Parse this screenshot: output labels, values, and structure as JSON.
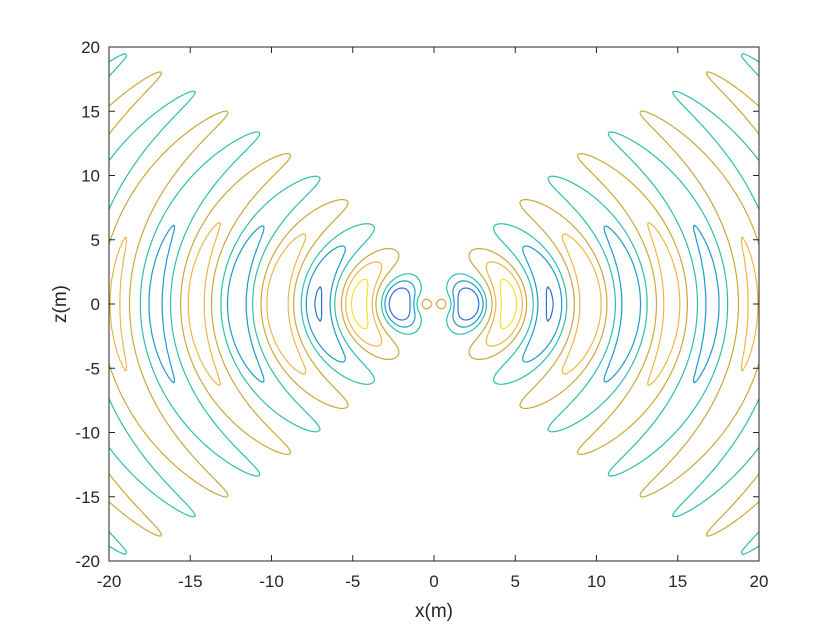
{
  "chart_data": {
    "type": "contour",
    "title": "",
    "xlabel": "x(m)",
    "ylabel": "z(m)",
    "xlim": [
      -20,
      20
    ],
    "ylim": [
      -20,
      20
    ],
    "xticks": [
      -20,
      -15,
      -10,
      -5,
      0,
      5,
      10,
      15,
      20
    ],
    "yticks": [
      -20,
      -15,
      -10,
      -5,
      0,
      5,
      10,
      15,
      20
    ],
    "xtick_labels": [
      "-20",
      "-15",
      "-10",
      "-5",
      "0",
      "5",
      "10",
      "15",
      "20"
    ],
    "ytick_labels": [
      "-20",
      "-15",
      "-10",
      "-5",
      "0",
      "5",
      "10",
      "15",
      "20"
    ],
    "grid": false,
    "legend": "none",
    "colormap": "parula",
    "contour_levels": [
      {
        "name": "level-1",
        "color": "#2a6fd6"
      },
      {
        "name": "level-2",
        "color": "#1a9ac9"
      },
      {
        "name": "level-3",
        "color": "#2bbfa6"
      },
      {
        "name": "level-4",
        "color": "#c9a83a"
      },
      {
        "name": "level-5",
        "color": "#f0b640"
      },
      {
        "name": "level-6",
        "color": "#f2e322"
      }
    ],
    "wave_wavelength_m": 5,
    "central_source": {
      "x": 0,
      "z": 0
    }
  }
}
